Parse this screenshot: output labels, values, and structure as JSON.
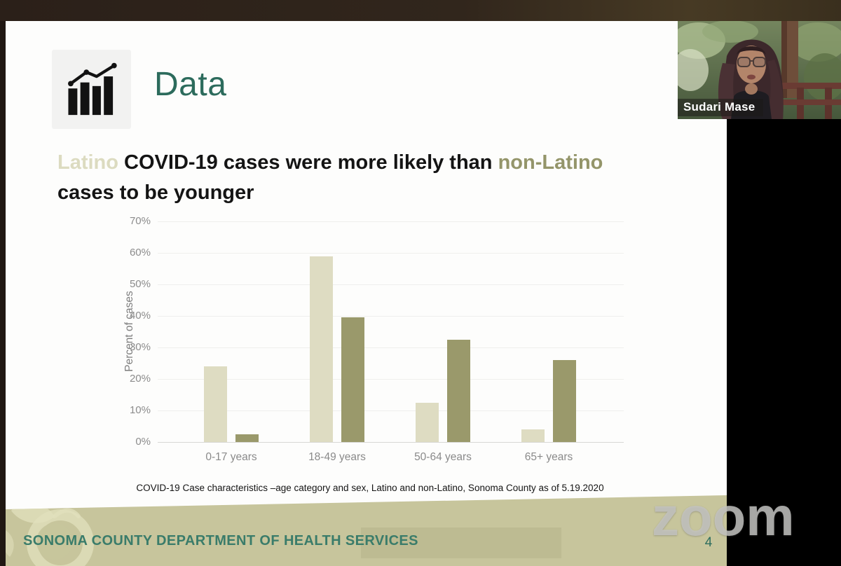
{
  "app": {
    "speaker_name": "Sudari Mase",
    "watermark": "zoom"
  },
  "slide": {
    "title": "Data",
    "heading": {
      "part1": "Latino",
      "part2": " COVID-19 cases were more likely than ",
      "part3": "non-Latino",
      "part4": " cases to be younger"
    },
    "caption": "COVID-19 Case characteristics –age category and sex, Latino and non-Latino, Sonoma County as of 5.19.2020",
    "footer": {
      "org": "SONOMA COUNTY DEPARTMENT OF HEALTH SERVICES",
      "page_number": "4"
    }
  },
  "chart_data": {
    "type": "bar",
    "title": "",
    "categories": [
      "0-17 years",
      "18-49 years",
      "50-64 years",
      "65+ years"
    ],
    "series": [
      {
        "name": "Latino",
        "color": "#dedcc2",
        "values": [
          24,
          59,
          12.5,
          4
        ]
      },
      {
        "name": "non-Latino",
        "color": "#9a996b",
        "values": [
          2.5,
          39.5,
          32.5,
          26
        ]
      }
    ],
    "ylabel": "Percent of cases",
    "xlabel": "",
    "yticks": [
      70,
      60,
      50,
      40,
      30,
      20,
      10,
      0
    ],
    "ytick_format": "percent",
    "ylim": [
      0,
      70
    ],
    "grid": true,
    "legend": "none"
  },
  "colors": {
    "accent_teal": "#2c6b5c",
    "footer_teal": "#3a7c6a",
    "band_olive": "#c7c59c",
    "latino_light": "#dedcc2",
    "non_latino_dark": "#9a996b",
    "topbar_brown": "#31261c"
  }
}
